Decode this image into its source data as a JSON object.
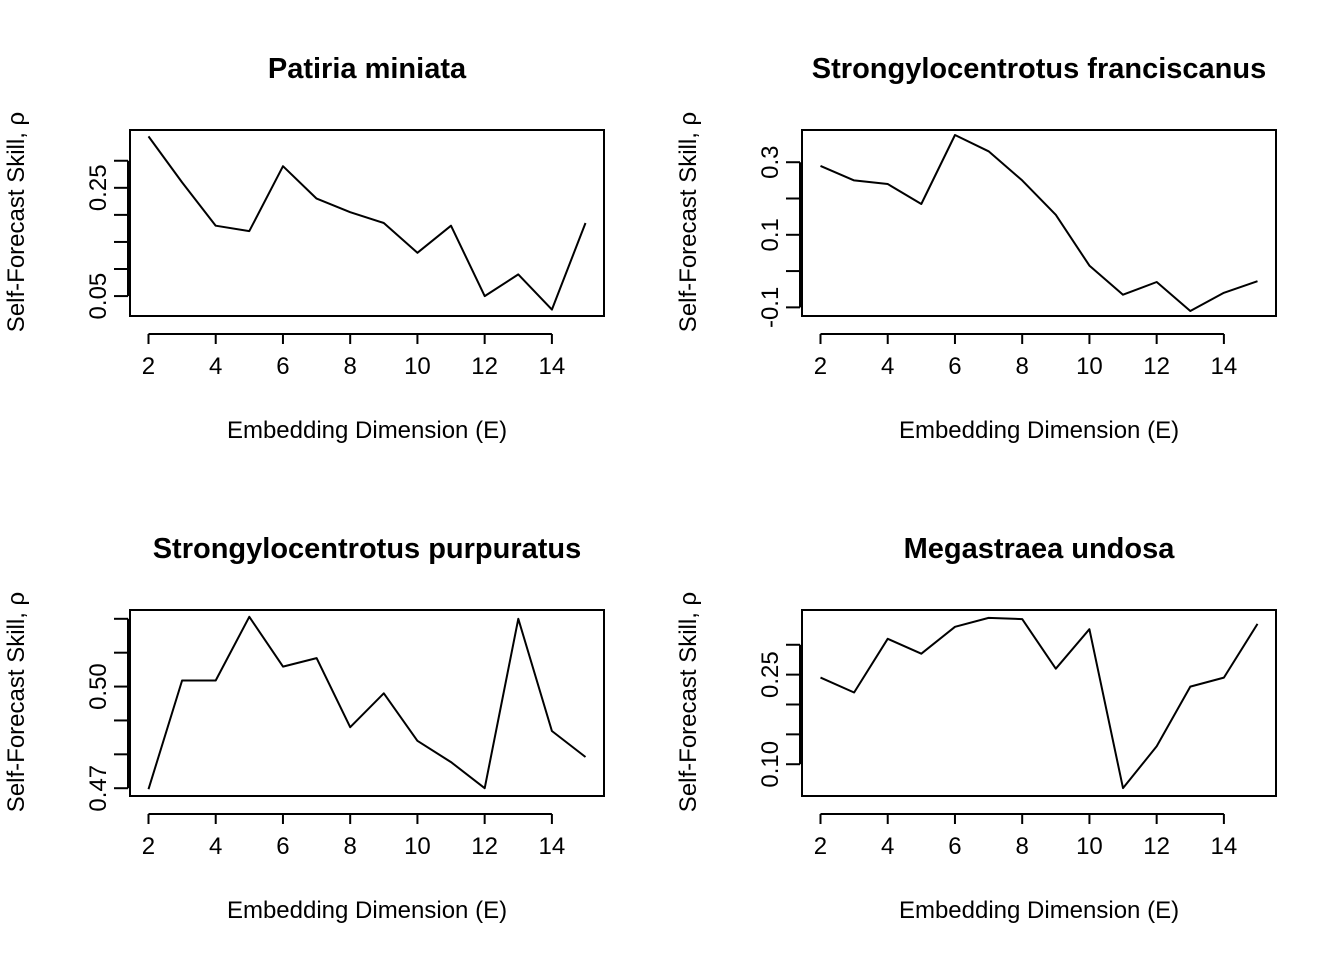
{
  "chart_data": [
    {
      "type": "line",
      "title": "Patiria miniata",
      "xlabel": "Embedding Dimension (E)",
      "ylabel": "Self-Forecast Skill, ρ",
      "x": [
        2,
        3,
        4,
        5,
        6,
        7,
        8,
        9,
        10,
        11,
        12,
        13,
        14,
        15
      ],
      "values": [
        0.345,
        0.26,
        0.18,
        0.17,
        0.29,
        0.23,
        0.205,
        0.185,
        0.13,
        0.18,
        0.05,
        0.09,
        0.025,
        0.185
      ],
      "xlim": [
        1.45,
        15.55
      ],
      "ylim": [
        0.0132,
        0.3568
      ],
      "xticks": [
        2,
        4,
        6,
        8,
        10,
        12,
        14
      ],
      "xtick_labels": [
        "2",
        "4",
        "6",
        "8",
        "10",
        "12",
        "14"
      ],
      "yticks": [
        0.05,
        0.1,
        0.15,
        0.2,
        0.25,
        0.3
      ],
      "ytick_labels": [
        "0.05",
        "",
        "",
        "",
        "0.25",
        ""
      ]
    },
    {
      "type": "line",
      "title": "Strongylocentrotus franciscanus",
      "xlabel": "Embedding Dimension (E)",
      "ylabel": "Self-Forecast Skill, ρ",
      "x": [
        2,
        3,
        4,
        5,
        6,
        7,
        8,
        9,
        10,
        11,
        12,
        13,
        14,
        15
      ],
      "values": [
        0.29,
        0.25,
        0.24,
        0.185,
        0.375,
        0.33,
        0.25,
        0.155,
        0.015,
        -0.065,
        -0.03,
        -0.11,
        -0.06,
        -0.028
      ],
      "xlim": [
        1.45,
        15.55
      ],
      "ylim": [
        -0.1238,
        0.3888
      ],
      "xticks": [
        2,
        4,
        6,
        8,
        10,
        12,
        14
      ],
      "xtick_labels": [
        "2",
        "4",
        "6",
        "8",
        "10",
        "12",
        "14"
      ],
      "yticks": [
        -0.1,
        0.0,
        0.1,
        0.2,
        0.3
      ],
      "ytick_labels": [
        "-0.1",
        "",
        "0.1",
        "",
        "0.3"
      ]
    },
    {
      "type": "line",
      "title": "Strongylocentrotus purpuratus",
      "xlabel": "Embedding Dimension (E)",
      "ylabel": "Self-Forecast Skill, ρ",
      "x": [
        2,
        3,
        4,
        5,
        6,
        7,
        8,
        9,
        10,
        11,
        12,
        13,
        14,
        15
      ],
      "values": [
        0.4672,
        0.4993,
        0.4993,
        0.5181,
        0.5034,
        0.5059,
        0.4855,
        0.4955,
        0.4815,
        0.4752,
        0.4675,
        0.5175,
        0.4844,
        0.4767
      ],
      "xlim": [
        1.45,
        15.55
      ],
      "ylim": [
        0.4652,
        0.5201
      ],
      "xticks": [
        2,
        4,
        6,
        8,
        10,
        12,
        14
      ],
      "xtick_labels": [
        "2",
        "4",
        "6",
        "8",
        "10",
        "12",
        "14"
      ],
      "yticks": [
        0.4675,
        0.4775,
        0.4875,
        0.4975,
        0.5075,
        0.5175
      ],
      "ytick_labels": [
        "0.47",
        "",
        "",
        "0.50",
        "",
        ""
      ]
    },
    {
      "type": "line",
      "title": "Megastraea undosa",
      "xlabel": "Embedding Dimension (E)",
      "ylabel": "Self-Forecast Skill, ρ",
      "x": [
        2,
        3,
        4,
        5,
        6,
        7,
        8,
        9,
        10,
        11,
        12,
        13,
        14,
        15
      ],
      "values": [
        0.245,
        0.22,
        0.31,
        0.285,
        0.33,
        0.345,
        0.343,
        0.26,
        0.326,
        0.06,
        0.13,
        0.23,
        0.245,
        0.335
      ],
      "xlim": [
        1.45,
        15.55
      ],
      "ylim": [
        0.0468,
        0.3582
      ],
      "xticks": [
        2,
        4,
        6,
        8,
        10,
        12,
        14
      ],
      "xtick_labels": [
        "2",
        "4",
        "6",
        "8",
        "10",
        "12",
        "14"
      ],
      "yticks": [
        0.1,
        0.15,
        0.2,
        0.25,
        0.3
      ],
      "ytick_labels": [
        "0.10",
        "",
        "",
        "0.25",
        ""
      ]
    }
  ]
}
